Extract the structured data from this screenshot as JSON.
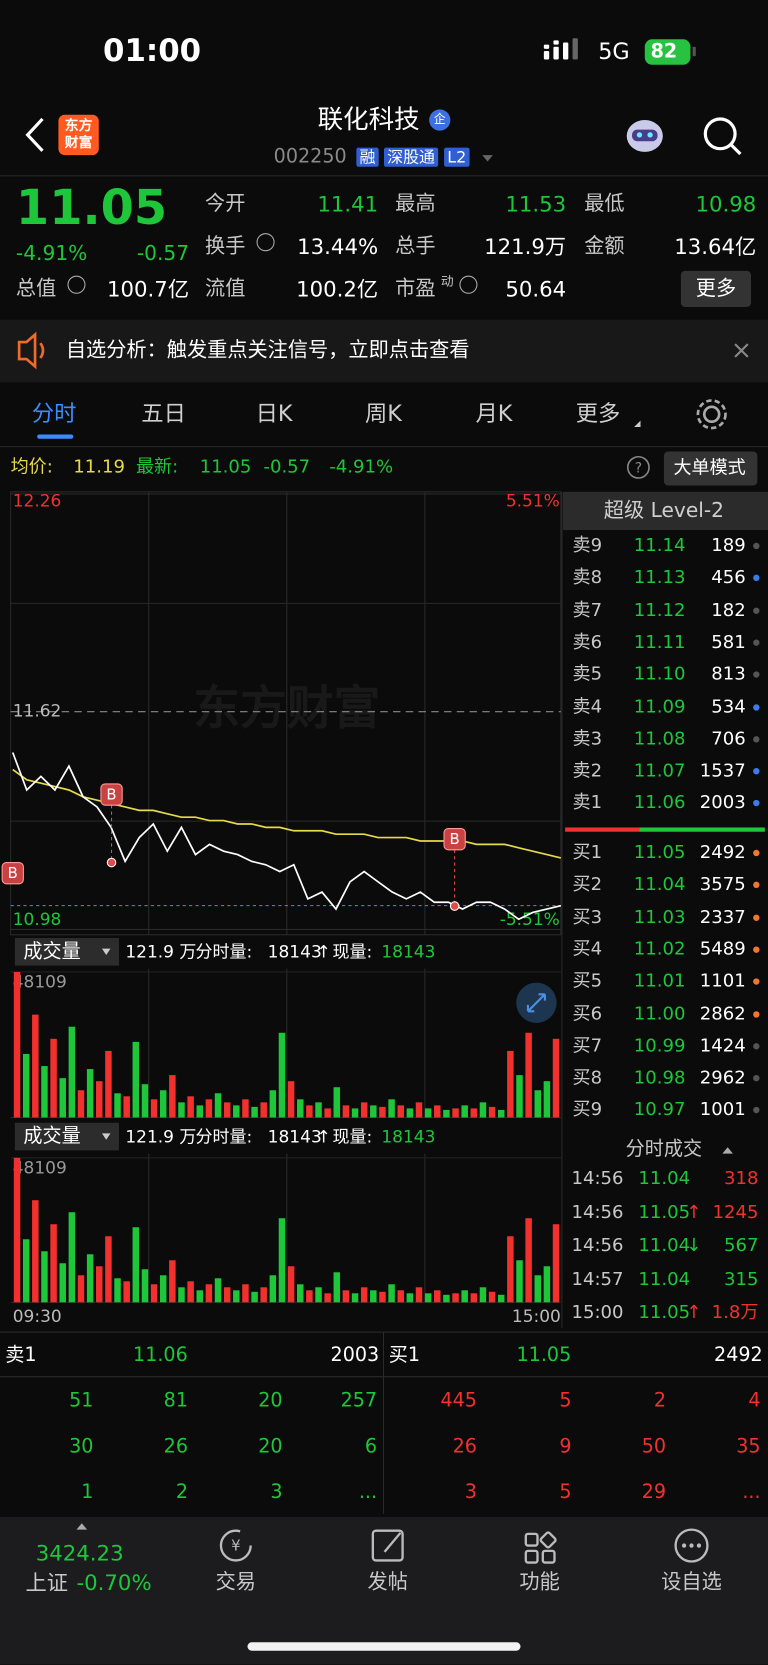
{
  "status_bar": {
    "time": "01:00",
    "network": "5G",
    "battery": "82"
  },
  "header": {
    "logo": [
      "东方",
      "财富"
    ],
    "name": "联化科技",
    "name_badge": "企",
    "code": "002250",
    "tags": [
      "融",
      "深股通",
      "L2"
    ]
  },
  "quote": {
    "price": "11.05",
    "change_pct": "-4.91%",
    "change": "-0.57",
    "fields": [
      {
        "label": "今开",
        "value": "11.41"
      },
      {
        "label": "最高",
        "value": "11.53"
      },
      {
        "label": "最低",
        "value": "10.98"
      },
      {
        "label": "换手",
        "value": "13.44%"
      },
      {
        "label": "总手",
        "value": "121.9万"
      },
      {
        "label": "金额",
        "value": "13.64亿"
      },
      {
        "label": "总值",
        "value": "100.7亿"
      },
      {
        "label": "流值",
        "value": "100.2亿"
      },
      {
        "label": "市盈",
        "sup": "动",
        "value": "50.64"
      }
    ],
    "more": "更多"
  },
  "notice": {
    "text": "自选分析：触发重点关注信号，立即点击查看"
  },
  "tabs": [
    "分时",
    "五日",
    "日K",
    "周K",
    "月K",
    "更多"
  ],
  "info_bar": {
    "avg_label": "均价:",
    "avg": "11.19",
    "latest_label": "最新:",
    "latest": "11.05",
    "change": "-0.57",
    "change_pct": "-4.91%",
    "mode_button": "大单模式"
  },
  "chart_data": [
    {
      "type": "line",
      "watermark": "东方财富",
      "signal_label": "B",
      "grid": true,
      "categories": [
        "09:30",
        null,
        null,
        null,
        null,
        null,
        null,
        null,
        null,
        null,
        null,
        null,
        null,
        null,
        null,
        null,
        null,
        null,
        null,
        null,
        null,
        null,
        null,
        null,
        null,
        null,
        null,
        null,
        null,
        null,
        null,
        null,
        null,
        null,
        null,
        null,
        null,
        null,
        null,
        "15:00"
      ],
      "series": [
        {
          "color": "#ffffff",
          "values": [
            11.5,
            11.39,
            11.43,
            11.39,
            11.46,
            11.37,
            11.34,
            11.28,
            11.18,
            11.25,
            11.29,
            11.21,
            11.28,
            11.2,
            11.23,
            11.21,
            11.2,
            11.18,
            11.17,
            11.15,
            11.17,
            11.07,
            11.09,
            11.04,
            11.12,
            11.15,
            11.12,
            11.09,
            11.07,
            11.09,
            11.06,
            11.06,
            11.04,
            11.06,
            11.06,
            11.04,
            11.01,
            11.03,
            11.04,
            11.05
          ]
        },
        {
          "color": "#e6d94a",
          "values": [
            11.45,
            11.42,
            11.41,
            11.4,
            11.39,
            11.37,
            11.36,
            11.35,
            11.34,
            11.33,
            11.33,
            11.32,
            11.31,
            11.31,
            11.3,
            11.3,
            11.29,
            11.29,
            11.28,
            11.28,
            11.27,
            11.27,
            11.27,
            11.26,
            11.26,
            11.26,
            11.25,
            11.25,
            11.25,
            11.24,
            11.24,
            11.24,
            11.24,
            11.23,
            11.23,
            11.23,
            11.22,
            11.21,
            11.2,
            11.19
          ]
        }
      ],
      "ylim": [
        10.98,
        12.26
      ],
      "yticks": [
        12.26,
        11.62,
        10.98
      ],
      "y2lim": [
        -5.51,
        5.51
      ],
      "y2ticks": [
        {
          "value": 5.51,
          "label": "5.51%"
        },
        {
          "value": -5.51,
          "label": "-5.51%"
        }
      ]
    },
    {
      "type": "bar",
      "title": "成交量",
      "total": "121.9 万",
      "minute_label": "分时量:",
      "minute_value": "18143",
      "arrow": "↑",
      "current_label": "现量:",
      "current_value": "18143",
      "ylim": [
        0,
        48109
      ],
      "yticks": [
        48109
      ],
      "series": [
        {
          "color": "#f2312f",
          "values": [
            48109,
            null,
            34000,
            null,
            26000,
            null,
            null,
            9000,
            null,
            12000,
            22000,
            null,
            7000,
            null,
            null,
            6000,
            null,
            14000,
            null,
            7000,
            null,
            6000,
            null,
            5000,
            null,
            6000,
            null,
            5000,
            null,
            null,
            12000,
            null,
            4000,
            null,
            3000,
            null,
            4000,
            null,
            5000,
            null,
            3500,
            null,
            4000,
            null,
            5000,
            null,
            4000,
            null,
            3000,
            null,
            3000,
            null,
            3500,
            null,
            22000,
            null,
            28000,
            null,
            null,
            26000
          ]
        },
        {
          "color": "#1ec73a",
          "values": [
            null,
            21000,
            null,
            17000,
            null,
            13000,
            30000,
            null,
            16000,
            null,
            null,
            8000,
            null,
            25000,
            11000,
            null,
            9000,
            null,
            5000,
            null,
            4000,
            null,
            8000,
            null,
            4000,
            null,
            3500,
            null,
            9000,
            28000,
            null,
            6000,
            null,
            5000,
            null,
            10000,
            null,
            3000,
            null,
            4000,
            null,
            6000,
            null,
            3000,
            null,
            3000,
            null,
            2500,
            null,
            4000,
            null,
            5000,
            null,
            2500,
            null,
            14000,
            null,
            9000,
            12000,
            null
          ]
        }
      ]
    }
  ],
  "level2": {
    "title": "超级 Level-2",
    "sells": [
      {
        "label": "卖9",
        "price": "11.14",
        "volume": 189,
        "dot": "#555555"
      },
      {
        "label": "卖8",
        "price": "11.13",
        "volume": 456,
        "dot": "#3d7bea"
      },
      {
        "label": "卖7",
        "price": "11.12",
        "volume": 182,
        "dot": "#555555"
      },
      {
        "label": "卖6",
        "price": "11.11",
        "volume": 581,
        "dot": "#555555"
      },
      {
        "label": "卖5",
        "price": "11.10",
        "volume": 813,
        "dot": "#555555"
      },
      {
        "label": "卖4",
        "price": "11.09",
        "volume": 534,
        "dot": "#3d7bea"
      },
      {
        "label": "卖3",
        "price": "11.08",
        "volume": 706,
        "dot": "#555555"
      },
      {
        "label": "卖2",
        "price": "11.07",
        "volume": 1537,
        "dot": "#3d7bea"
      },
      {
        "label": "卖1",
        "price": "11.06",
        "volume": 2003,
        "dot": "#3d7bea"
      }
    ],
    "buys": [
      {
        "label": "买1",
        "price": "11.05",
        "volume": 2492,
        "dot": "#f0772b"
      },
      {
        "label": "买2",
        "price": "11.04",
        "volume": 3575,
        "dot": "#f0772b"
      },
      {
        "label": "买3",
        "price": "11.03",
        "volume": 2337,
        "dot": "#f0772b"
      },
      {
        "label": "买4",
        "price": "11.02",
        "volume": 5489,
        "dot": "#f0772b"
      },
      {
        "label": "买5",
        "price": "11.01",
        "volume": 1101,
        "dot": "#f0772b"
      },
      {
        "label": "买6",
        "price": "11.00",
        "volume": 2862,
        "dot": "#f0772b"
      },
      {
        "label": "买7",
        "price": "10.99",
        "volume": 1424,
        "dot": "#555555"
      },
      {
        "label": "买8",
        "price": "10.98",
        "volume": 2962,
        "dot": "#555555"
      },
      {
        "label": "买9",
        "price": "10.97",
        "volume": 1001,
        "dot": "#555555"
      }
    ]
  },
  "trades": {
    "title": "分时成交",
    "rows": [
      {
        "time": "14:56",
        "price": "11.04",
        "volume": "318",
        "color": "#f2312f"
      },
      {
        "time": "14:56",
        "price": "11.05",
        "arrow": "↑",
        "volume": "1245",
        "color": "#f2312f"
      },
      {
        "time": "14:56",
        "price": "11.04",
        "arrow": "↓",
        "volume": "567",
        "color": "#1ec73a"
      },
      {
        "time": "14:57",
        "price": "11.04",
        "volume": "315",
        "color": "#1ec73a"
      },
      {
        "time": "15:00",
        "price": "11.05",
        "arrow": "↑",
        "volume": "1.8万",
        "color": "#f2312f"
      }
    ]
  },
  "order_book": {
    "ask": {
      "label": "卖1",
      "price": "11.06",
      "volume": 2003
    },
    "bid": {
      "label": "买1",
      "price": "11.05",
      "volume": 2492
    },
    "ask_queue": [
      [
        51,
        81,
        20,
        257
      ],
      [
        30,
        26,
        20,
        6
      ],
      [
        1,
        2,
        3,
        "..."
      ]
    ],
    "bid_queue": [
      [
        445,
        5,
        2,
        4
      ],
      [
        26,
        9,
        50,
        35
      ],
      [
        3,
        5,
        29,
        "..."
      ]
    ]
  },
  "nav": {
    "index": {
      "value": "3424.23",
      "name": "上证",
      "change": "-0.70%"
    },
    "items": [
      "交易",
      "发帖",
      "功能",
      "设自选"
    ]
  }
}
